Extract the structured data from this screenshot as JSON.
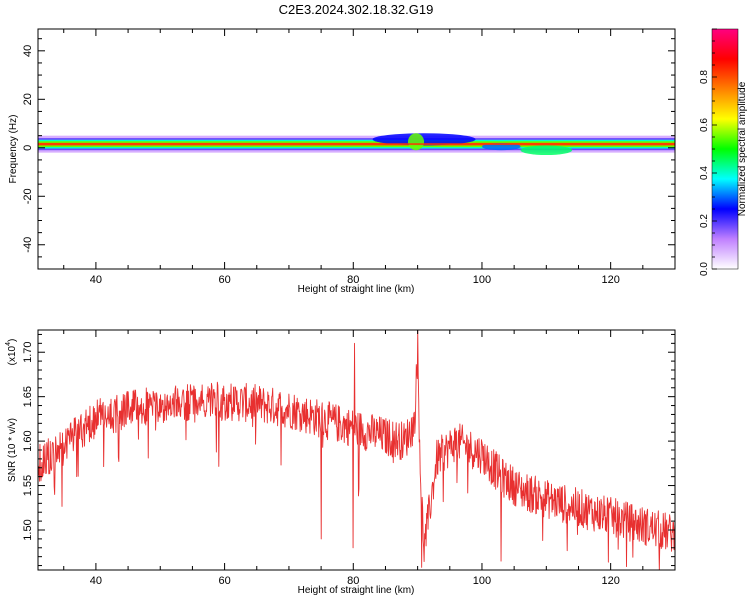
{
  "title": "C2E3.2024.302.18.32.G19",
  "chart_data": [
    {
      "type": "heatmap",
      "xlabel": "Height of straight line (km)",
      "ylabel": "Frequency (Hz)",
      "xlim": [
        31,
        130
      ],
      "ylim": [
        -50,
        49
      ],
      "xticks": [
        40,
        60,
        80,
        100,
        120
      ],
      "yticks": [
        40,
        20,
        0,
        -20,
        -40
      ],
      "colorbar": {
        "label": "Normalized spectral amplitude",
        "range": [
          0,
          1
        ],
        "ticks": [
          "0.0",
          "0.2",
          "0.4",
          "0.6",
          "0.8"
        ],
        "tick_values": [
          0,
          0.2,
          0.4,
          0.6,
          0.8
        ],
        "colors": [
          "#ffffff",
          "#c080ff",
          "#0000ff",
          "#00ffff",
          "#00ff00",
          "#ffff00",
          "#ff8000",
          "#ff0000",
          "#ff0080"
        ]
      },
      "band": {
        "center_freq_hz": 1.5,
        "core_halfwidth_hz": 1.2,
        "outer_halfwidth_hz": 2.5,
        "features": [
          {
            "x_range_km": [
              83,
              99
            ],
            "freq_range_hz": [
              1,
              6
            ],
            "amplitude": 0.25
          },
          {
            "x_range_km": [
              88.5,
              91
            ],
            "freq_range_hz": [
              -1,
              6
            ],
            "amplitude": 0.55
          },
          {
            "x_range_km": [
              100,
              106
            ],
            "freq_range_hz": [
              -1,
              2
            ],
            "amplitude": 0.3
          },
          {
            "x_range_km": [
              106,
              114
            ],
            "freq_range_hz": [
              -3,
              1
            ],
            "amplitude": 0.45
          }
        ]
      }
    },
    {
      "type": "line",
      "xlabel": "Height of straight line (km)",
      "ylabel": "SNR (10 * v/v)",
      "y_multiplier": "(x10",
      "y_multiplier_exp": "4",
      "y_multiplier_close": ")",
      "xlim": [
        31,
        130
      ],
      "ylim": [
        1.455,
        1.725
      ],
      "xticks": [
        40,
        60,
        80,
        100,
        120
      ],
      "yticks": [
        "1.70",
        "1.65",
        "1.60",
        "1.55",
        "1.50"
      ],
      "ytick_values": [
        1.7,
        1.65,
        1.6,
        1.55,
        1.5
      ],
      "series": [
        {
          "color": "#e83030",
          "trend": {
            "x": [
              31,
              35,
              40,
              45,
              50,
              55,
              60,
              65,
              70,
              75,
              80,
              85,
              88,
              89.5,
              90,
              90.5,
              91,
              93,
              96,
              100,
              103,
              106,
              110,
              115,
              120,
              125,
              130
            ],
            "y": [
              1.575,
              1.595,
              1.625,
              1.635,
              1.64,
              1.642,
              1.645,
              1.642,
              1.636,
              1.625,
              1.615,
              1.605,
              1.6,
              1.62,
              1.7,
              1.55,
              1.48,
              1.58,
              1.6,
              1.585,
              1.56,
              1.545,
              1.535,
              1.525,
              1.515,
              1.505,
              1.495
            ]
          },
          "noise_amplitude": 0.022,
          "notable_points": [
            {
              "x": 75,
              "y": 1.49
            },
            {
              "x": 80,
              "y": 1.48
            },
            {
              "x": 80.2,
              "y": 1.71
            },
            {
              "x": 90,
              "y": 1.725
            },
            {
              "x": 90.6,
              "y": 1.458
            },
            {
              "x": 103,
              "y": 1.465
            }
          ]
        }
      ]
    }
  ]
}
